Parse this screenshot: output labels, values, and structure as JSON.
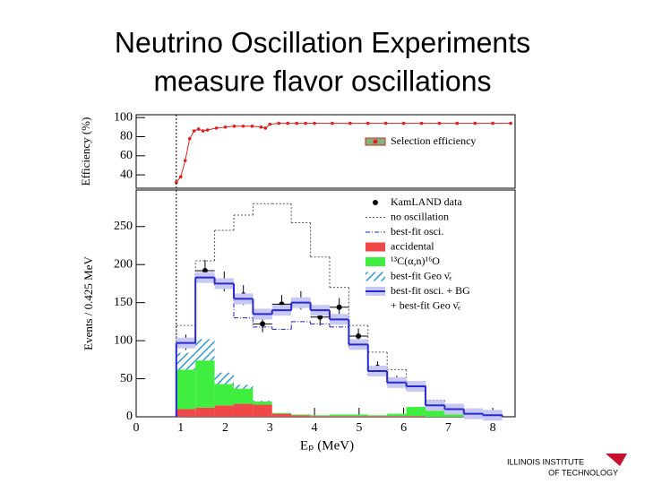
{
  "title": [
    "Neutrino Oscillation Experiments",
    "measure flavor oscillations"
  ],
  "logo": [
    "ILLINOIS INSTITUTE",
    "OF TECHNOLOGY"
  ],
  "chart_data": [
    {
      "type": "line",
      "y_label": "Efficiency (%)",
      "x": [
        0.9,
        1.0,
        1.1,
        1.2,
        1.3,
        1.4,
        1.5,
        1.6,
        1.8,
        2.0,
        2.2,
        2.4,
        2.6,
        2.8,
        2.9,
        3.0,
        3.2,
        3.4,
        3.6,
        3.8,
        4.0,
        4.4,
        4.8,
        5.2,
        5.6,
        6.0,
        6.4,
        6.8,
        7.2,
        7.6,
        8.0,
        8.4
      ],
      "series": [
        {
          "name": "Selection efficiency",
          "color": "#e02020",
          "values": [
            32,
            38,
            55,
            78,
            86,
            88,
            86,
            87,
            89,
            90,
            91,
            91,
            91,
            90,
            89,
            93,
            94,
            94,
            94,
            94,
            94,
            94,
            94,
            94,
            94,
            94,
            94,
            94,
            94,
            94,
            94,
            94
          ]
        }
      ],
      "xlim": [
        0,
        8.5
      ],
      "ylim": [
        26,
        103
      ],
      "yticks": [
        40,
        60,
        80,
        100
      ]
    },
    {
      "type": "histogram",
      "x_label": "Eₚ (MeV)",
      "y_label": "Events / 0.425 MeV",
      "bins": [
        0.9,
        1.33,
        1.76,
        2.19,
        2.62,
        3.05,
        3.48,
        3.91,
        4.34,
        4.77,
        5.2,
        5.63,
        6.06,
        6.49,
        6.92,
        7.35,
        7.78,
        8.21
      ],
      "threshold": 0.9,
      "series": [
        {
          "name": "KamLAND data",
          "color": "#000000",
          "style": "points",
          "values": [
            98,
            192,
            178,
            160,
            122,
            148,
            153,
            131,
            144,
            106,
            65,
            47,
            41,
            14,
            13,
            3,
            4
          ],
          "errors": [
            10,
            14,
            13,
            13,
            11,
            12,
            12,
            11,
            12,
            10,
            8,
            7,
            6,
            4,
            3,
            2,
            2
          ]
        },
        {
          "name": "no oscillation",
          "color": "#555555",
          "style": "dotted",
          "values": [
            120,
            205,
            245,
            265,
            280,
            280,
            255,
            210,
            170,
            120,
            85,
            62,
            42,
            22,
            10,
            5,
            3
          ]
        },
        {
          "name": "best-fit osci.",
          "color": "#2020c0",
          "style": "dashdot",
          "values": [
            95,
            178,
            173,
            130,
            118,
            115,
            125,
            122,
            118,
            92,
            55,
            42,
            36,
            16,
            8,
            3,
            2
          ]
        },
        {
          "name": "accidental",
          "color": "#f04848",
          "style": "fill",
          "values": [
            10,
            12,
            15,
            17,
            16,
            4,
            2,
            1,
            1,
            1,
            1,
            1,
            1,
            0,
            0,
            0,
            0
          ]
        },
        {
          "name": "¹³C(α,n)¹⁶O",
          "color": "#40ee40",
          "style": "fill",
          "values": [
            52,
            62,
            28,
            20,
            4,
            1,
            1,
            1,
            2,
            2,
            1,
            3,
            12,
            8,
            3,
            1,
            1
          ]
        },
        {
          "name": "best-fit Geo ν̄ₑ",
          "color": "#2a9ad8",
          "style": "hatch",
          "values": [
            22,
            28,
            15,
            5,
            1,
            0,
            0,
            0,
            0,
            0,
            0,
            0,
            0,
            0,
            0,
            0,
            0
          ]
        },
        {
          "name": "best-fit osci. + BG",
          "color": "#2828d0",
          "style": "solid",
          "values": [
            97,
            183,
            175,
            155,
            135,
            140,
            150,
            140,
            128,
            95,
            60,
            45,
            40,
            15,
            10,
            4,
            2
          ]
        }
      ],
      "legend_extra": "+ best-fit Geo ν̄ₑ",
      "xlim": [
        0,
        8.5
      ],
      "ylim": [
        0,
        298
      ],
      "xticks": [
        0,
        1,
        2,
        3,
        4,
        5,
        6,
        7,
        8
      ],
      "yticks": [
        0,
        50,
        100,
        150,
        200,
        250
      ]
    }
  ]
}
